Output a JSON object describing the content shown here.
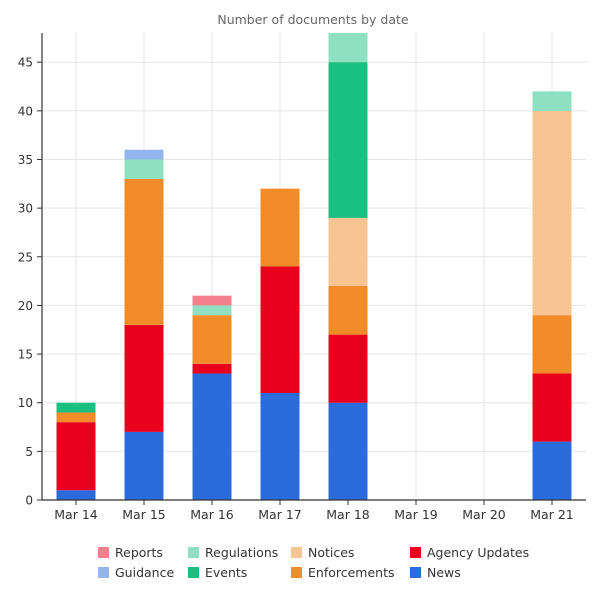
{
  "chart_data": {
    "type": "bar",
    "stacked": true,
    "title": "Number of documents by date",
    "xlabel": "",
    "ylabel": "",
    "ylim": [
      0,
      48
    ],
    "yticks": [
      0,
      5,
      10,
      15,
      20,
      25,
      30,
      35,
      40,
      45
    ],
    "grid": true,
    "legend_position": "bottom",
    "categories": [
      "Mar 14",
      "Mar 15",
      "Mar 16",
      "Mar 17",
      "Mar 18",
      "Mar 19",
      "Mar 20",
      "Mar 21"
    ],
    "series": [
      {
        "name": "News",
        "color": "#2b6cdd",
        "values": [
          1,
          7,
          13,
          11,
          10,
          0,
          0,
          6
        ]
      },
      {
        "name": "Agency Updates",
        "color": "#e8001e",
        "values": [
          7,
          11,
          1,
          13,
          7,
          0,
          0,
          7
        ]
      },
      {
        "name": "Enforcements",
        "color": "#f28c28",
        "values": [
          1,
          15,
          5,
          8,
          5,
          0,
          0,
          6
        ]
      },
      {
        "name": "Notices",
        "color": "#f8c491",
        "values": [
          0,
          0,
          0,
          0,
          7,
          0,
          0,
          21
        ]
      },
      {
        "name": "Events",
        "color": "#19c07f",
        "values": [
          1,
          0,
          0,
          0,
          16,
          0,
          0,
          0
        ]
      },
      {
        "name": "Regulations",
        "color": "#8fe0c2",
        "values": [
          0,
          2,
          1,
          0,
          3,
          0,
          0,
          2
        ]
      },
      {
        "name": "Guidance",
        "color": "#93b4ec",
        "values": [
          0,
          1,
          0,
          0,
          0,
          0,
          0,
          0
        ]
      },
      {
        "name": "Reports",
        "color": "#f5808d",
        "values": [
          0,
          0,
          1,
          0,
          0,
          0,
          0,
          0
        ]
      }
    ],
    "legend_order": [
      "Reports",
      "Regulations",
      "Notices",
      "Agency Updates",
      "Guidance",
      "Events",
      "Enforcements",
      "News"
    ]
  }
}
